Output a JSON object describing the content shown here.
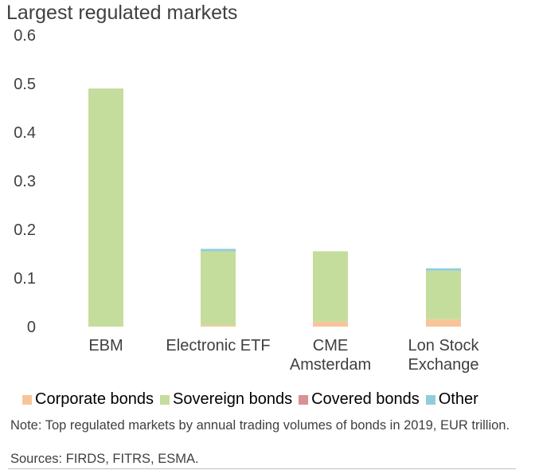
{
  "chart_data": {
    "type": "bar",
    "stacked": true,
    "title": "Largest regulated markets",
    "categories": [
      [
        "EBM"
      ],
      [
        "Electronic ETF"
      ],
      [
        "CME",
        "Amsterdam"
      ],
      [
        "Lon Stock",
        "Exchange"
      ]
    ],
    "ylim": [
      0,
      0.6
    ],
    "yticks": [
      "0",
      "0.1",
      "0.2",
      "0.3",
      "0.4",
      "0.5",
      "0.6"
    ],
    "series": [
      {
        "name": "Corporate bonds",
        "color": "#f8c59a",
        "values": [
          0,
          0.003,
          0.01,
          0.015
        ]
      },
      {
        "name": "Sovereign bonds",
        "color": "#c5dd9c",
        "values": [
          0.49,
          0.152,
          0.145,
          0.1
        ]
      },
      {
        "name": "Covered bonds",
        "color": "#d89294",
        "values": [
          0,
          0,
          0,
          0
        ]
      },
      {
        "name": "Other",
        "color": "#92cddc",
        "values": [
          0,
          0.005,
          0,
          0.005
        ]
      }
    ],
    "grid": false,
    "legend_position": "bottom"
  },
  "note": "Note: Top regulated markets by annual trading volumes of bonds in 2019, EUR trillion.",
  "source": "Sources: FIRDS, FITRS, ESMA."
}
